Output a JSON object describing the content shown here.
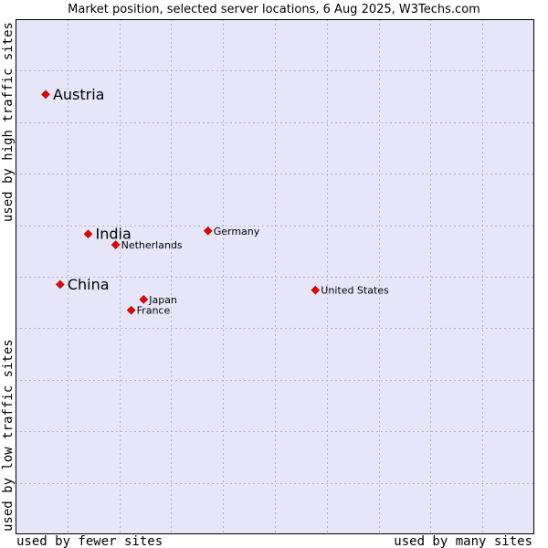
{
  "chart_data": {
    "type": "scatter",
    "title": "Market position, selected server locations, 6 Aug 2025, W3Techs.com",
    "x_low_label": "used by fewer sites",
    "x_high_label": "used by many sites",
    "y_low_label": "used by low traffic sites",
    "y_high_label": "used by high traffic sites",
    "xlim": [
      0,
      100
    ],
    "ylim": [
      0,
      100
    ],
    "grid": true,
    "colors": {
      "plot_bg": "#e6e6f8",
      "grid": "#b4b4c8",
      "marker": "#ee0000",
      "marker_edge": "#aa0000"
    },
    "points": [
      {
        "label": "Austria",
        "x": 5.8,
        "y": 85.4,
        "emphasis": "large"
      },
      {
        "label": "India",
        "x": 14.0,
        "y": 58.3,
        "emphasis": "large"
      },
      {
        "label": "China",
        "x": 8.6,
        "y": 48.5,
        "emphasis": "large"
      },
      {
        "label": "Germany",
        "x": 37.1,
        "y": 58.9,
        "emphasis": "small"
      },
      {
        "label": "Netherlands",
        "x": 19.3,
        "y": 56.2,
        "emphasis": "small"
      },
      {
        "label": "United States",
        "x": 57.8,
        "y": 47.4,
        "emphasis": "small"
      },
      {
        "label": "Japan",
        "x": 24.7,
        "y": 45.6,
        "emphasis": "small"
      },
      {
        "label": "France",
        "x": 22.3,
        "y": 43.5,
        "emphasis": "small"
      }
    ]
  }
}
